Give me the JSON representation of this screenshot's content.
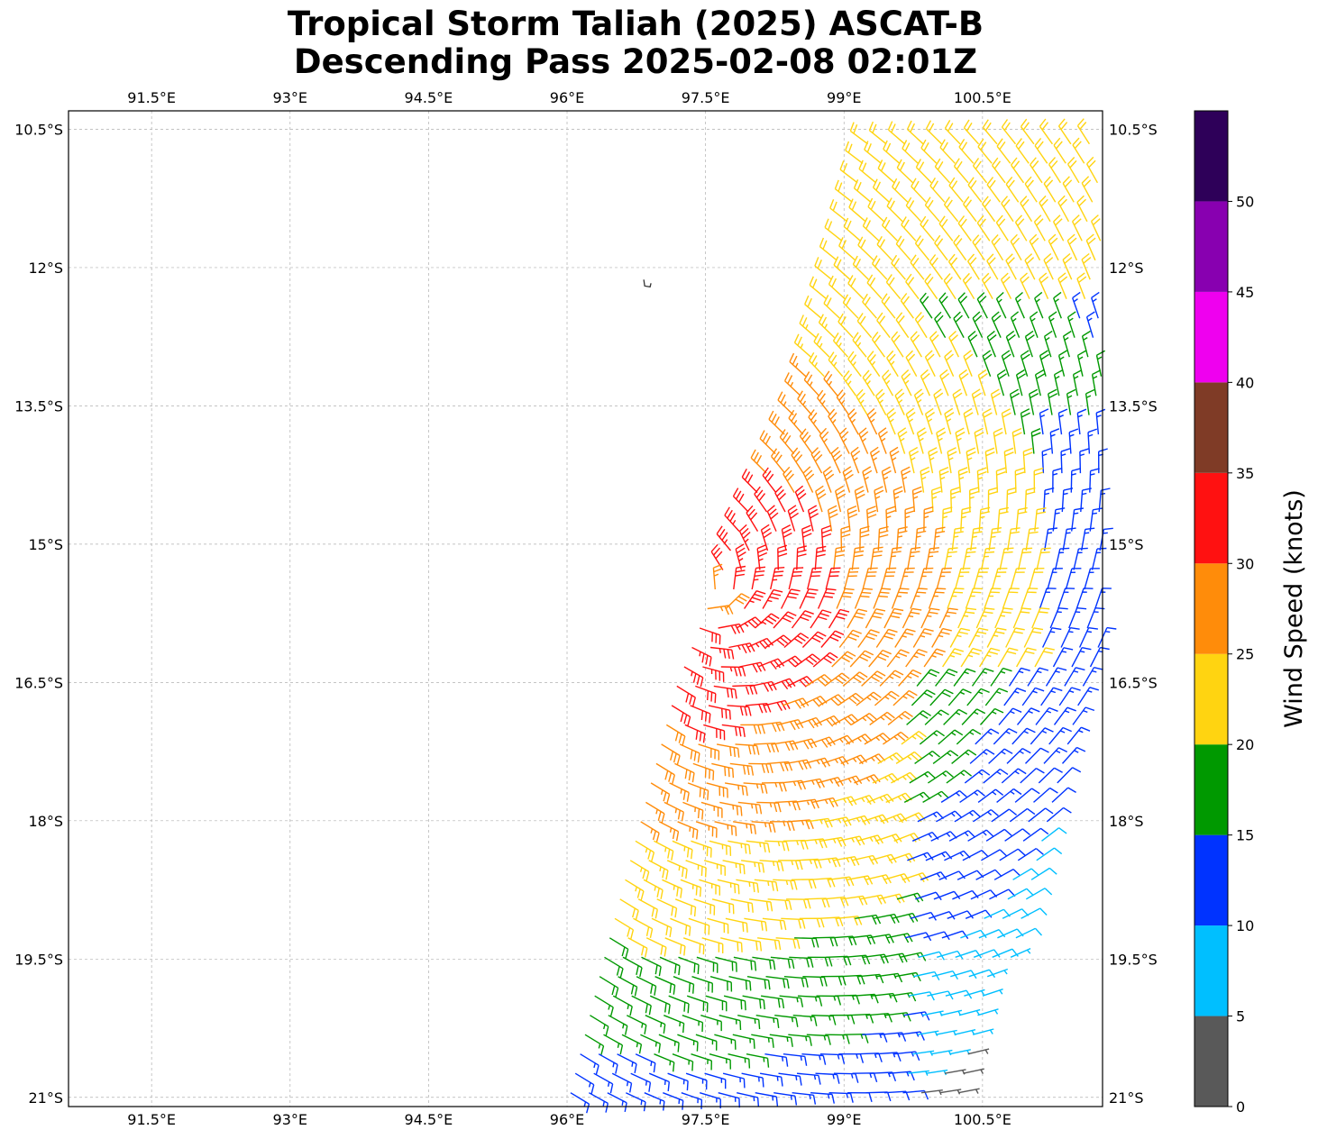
{
  "title": {
    "line1": "Tropical Storm Taliah (2025) ASCAT-B",
    "line2": "Descending Pass 2025-02-08 02:01Z"
  },
  "map": {
    "lon_range": [
      90.6,
      101.8
    ],
    "lat_range": [
      -21.1,
      -10.3
    ],
    "lon_ticks": [
      {
        "value": 91.5,
        "label": "91.5°E"
      },
      {
        "value": 93.0,
        "label": "93°E"
      },
      {
        "value": 94.5,
        "label": "94.5°E"
      },
      {
        "value": 96.0,
        "label": "96°E"
      },
      {
        "value": 97.5,
        "label": "97.5°E"
      },
      {
        "value": 99.0,
        "label": "99°E"
      },
      {
        "value": 100.5,
        "label": "100.5°E"
      }
    ],
    "lat_ticks": [
      {
        "value": -10.5,
        "label": "10.5°S"
      },
      {
        "value": -12.0,
        "label": "12°S"
      },
      {
        "value": -13.5,
        "label": "13.5°S"
      },
      {
        "value": -15.0,
        "label": "15°S"
      },
      {
        "value": -16.5,
        "label": "16.5°S"
      },
      {
        "value": -18.0,
        "label": "18°S"
      },
      {
        "value": -19.5,
        "label": "19.5°S"
      },
      {
        "value": -21.0,
        "label": "21°S"
      }
    ],
    "gridlines": true,
    "storm_center": {
      "lon": 97.45,
      "lat": -15.55
    },
    "island": {
      "lon": 96.87,
      "lat": -12.17
    }
  },
  "colorbar": {
    "label": "Wind Speed (knots)",
    "bins": [
      {
        "min": 0,
        "max": 5,
        "color": "#595959"
      },
      {
        "min": 5,
        "max": 10,
        "color": "#00bfff"
      },
      {
        "min": 10,
        "max": 15,
        "color": "#0033ff"
      },
      {
        "min": 15,
        "max": 20,
        "color": "#009900"
      },
      {
        "min": 20,
        "max": 25,
        "color": "#ffd411"
      },
      {
        "min": 25,
        "max": 30,
        "color": "#ff8c0a"
      },
      {
        "min": 30,
        "max": 35,
        "color": "#ff1111"
      },
      {
        "min": 35,
        "max": 40,
        "color": "#7f3b26"
      },
      {
        "min": 40,
        "max": 45,
        "color": "#ef00ef"
      },
      {
        "min": 45,
        "max": 50,
        "color": "#8800b0"
      },
      {
        "min": 50,
        "max": 55,
        "color": "#2e0059"
      }
    ],
    "tick_labels": [
      "0",
      "5",
      "10",
      "15",
      "20",
      "25",
      "30",
      "35",
      "40",
      "45",
      "50"
    ]
  },
  "chart_data": {
    "type": "wind-barbs",
    "units": "knots",
    "swath": {
      "description_rows": "rows of scatterometer cells, lat from -10.5 to -21.1",
      "rows": [
        {
          "lat": -10.5,
          "lon_min": 99.3,
          "lon_max": 101.8
        },
        {
          "lat": -12.0,
          "lon_min": 98.9,
          "lon_max": 101.8
        },
        {
          "lat": -13.5,
          "lon_min": 98.5,
          "lon_max": 101.8
        },
        {
          "lat": -15.0,
          "lon_min": 97.8,
          "lon_max": 101.8
        },
        {
          "lat": -16.5,
          "lon_min": 97.2,
          "lon_max": 101.8
        },
        {
          "lat": -18.0,
          "lon_min": 96.8,
          "lon_max": 101.4
        },
        {
          "lat": -19.5,
          "lon_min": 96.4,
          "lon_max": 100.8
        },
        {
          "lat": -21.1,
          "lon_min": 96.0,
          "lon_max": 100.2
        }
      ]
    }
  }
}
